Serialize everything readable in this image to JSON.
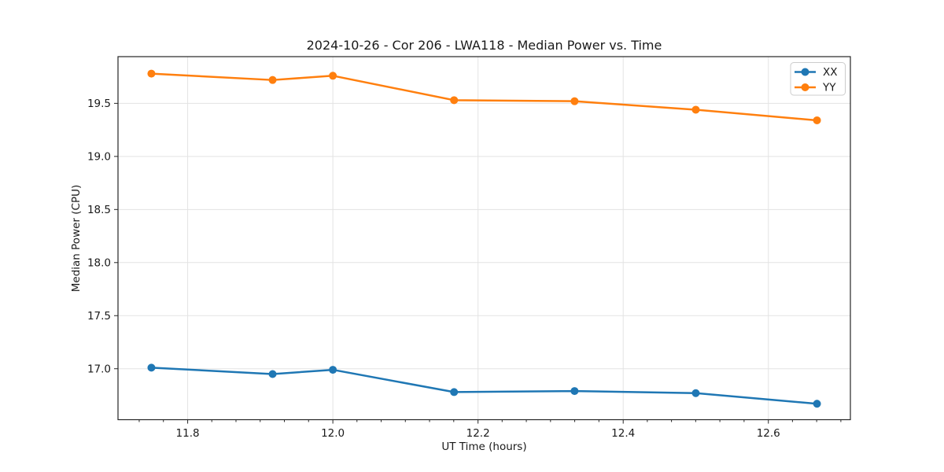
{
  "chart_data": {
    "type": "line",
    "title": "2024-10-26 - Cor 206 - LWA118 - Median Power vs. Time",
    "xlabel": "UT Time (hours)",
    "ylabel": "Median Power (CPU)",
    "x": [
      11.75,
      11.917,
      12.0,
      12.167,
      12.333,
      12.5,
      12.667
    ],
    "series": [
      {
        "name": "XX",
        "color": "#1f77b4",
        "marker": "circle",
        "values": [
          17.01,
          16.95,
          16.99,
          16.78,
          16.79,
          16.77,
          16.67
        ]
      },
      {
        "name": "YY",
        "color": "#ff7f0e",
        "marker": "circle",
        "values": [
          19.78,
          19.72,
          19.76,
          19.53,
          19.52,
          19.44,
          19.34
        ]
      }
    ],
    "xlim": [
      11.704,
      12.713
    ],
    "ylim": [
      16.52,
      19.94
    ],
    "xticks": [
      11.8,
      12.0,
      12.2,
      12.4,
      12.6
    ],
    "xtick_labels": [
      "11.8",
      "12.0",
      "12.2",
      "12.4",
      "12.6"
    ],
    "minor_xtick_interval": 0.033333,
    "yticks": [
      17.0,
      17.5,
      18.0,
      18.5,
      19.0,
      19.5
    ],
    "ytick_labels": [
      "17.0",
      "17.5",
      "18.0",
      "18.5",
      "19.0",
      "19.5"
    ],
    "grid": true,
    "legend": {
      "position": "upper right",
      "entries": [
        "XX",
        "YY"
      ]
    },
    "colors": {
      "grid": "#e3e3e3",
      "spine": "#262626",
      "tick": "#262626",
      "text": "#1a1a1a",
      "background": "#ffffff"
    }
  }
}
